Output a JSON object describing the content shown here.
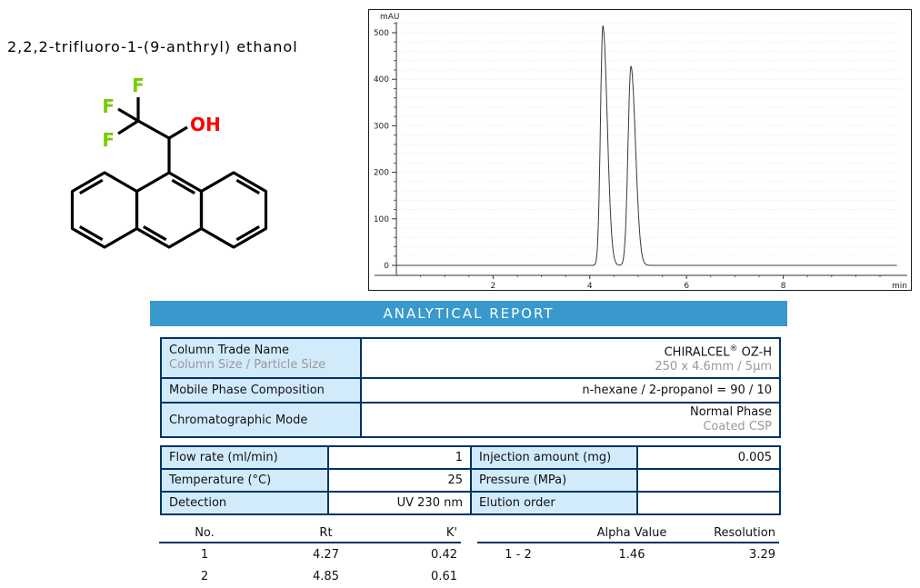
{
  "colors": {
    "banner_blue": "#3A99CC",
    "cell_blue": "#D2EBFB",
    "table_border_navy": "#003366",
    "fluorine_green": "#77CC00",
    "hydroxyl_red": "#FF0000",
    "secondary_gray": "#999999"
  },
  "compound": {
    "name": "2,2,2-trifluoro-1-(9-anthryl) ethanol",
    "atom_labels": {
      "f": "F",
      "oh": "OH"
    }
  },
  "banner": {
    "title": "ANALYTICAL REPORT"
  },
  "column_table": {
    "rows": [
      {
        "label": "Column Trade Name",
        "sublabel": "Column Size / Particle Size",
        "value_name": "CHIRALCEL",
        "value_reg": "®",
        "value_suffix": " OZ-H",
        "subvalue": "250 x 4.6mm / 5µm"
      },
      {
        "label": "Mobile Phase Composition",
        "value": "n-hexane / 2-propanol = 90 / 10"
      },
      {
        "label": "Chromatographic Mode",
        "value": "Normal Phase",
        "subvalue": "Coated CSP"
      }
    ]
  },
  "conditions_table": {
    "rows": [
      {
        "label1": "Flow rate (ml/min)",
        "value1": "1",
        "label2": "Injection amount (mg)",
        "value2": "0.005"
      },
      {
        "label1": "Temperature (°C)",
        "value1": "25",
        "label2": "Pressure (MPa)",
        "value2": ""
      },
      {
        "label1": "Detection",
        "value1": "UV 230 nm",
        "label2": "Elution order",
        "value2": ""
      }
    ]
  },
  "results": {
    "peaks": {
      "headers": [
        "No.",
        "Rt",
        "K'"
      ],
      "rows": [
        [
          "1",
          "4.27",
          "0.42"
        ],
        [
          "2",
          "4.85",
          "0.61"
        ]
      ]
    },
    "separation": {
      "headers": [
        "",
        "Alpha Value",
        "Resolution"
      ],
      "rows": [
        [
          "1 - 2",
          "1.46",
          "3.29"
        ]
      ]
    }
  },
  "chart_data": {
    "type": "line",
    "title": "HPLC chromatogram",
    "ylabel": "mAU",
    "xlabel": "min",
    "x_range": [
      0,
      10.4
    ],
    "y_range": [
      -30,
      545
    ],
    "x_major_ticks": [
      2,
      4,
      6,
      8
    ],
    "x_minor_tick_step": 0.5,
    "y_major_ticks": [
      0,
      100,
      200,
      300,
      400,
      500
    ],
    "y_minor_tick_step": 20,
    "grid": "dotted-horizontal",
    "legend": "none",
    "baseline_mau": 0,
    "peaks": [
      {
        "no": 1,
        "rt_min": 4.27,
        "height_mau": 515,
        "sigma_left": 0.05,
        "sigma_right": 0.09
      },
      {
        "no": 2,
        "rt_min": 4.85,
        "height_mau": 428,
        "sigma_left": 0.06,
        "sigma_right": 0.095
      }
    ]
  }
}
